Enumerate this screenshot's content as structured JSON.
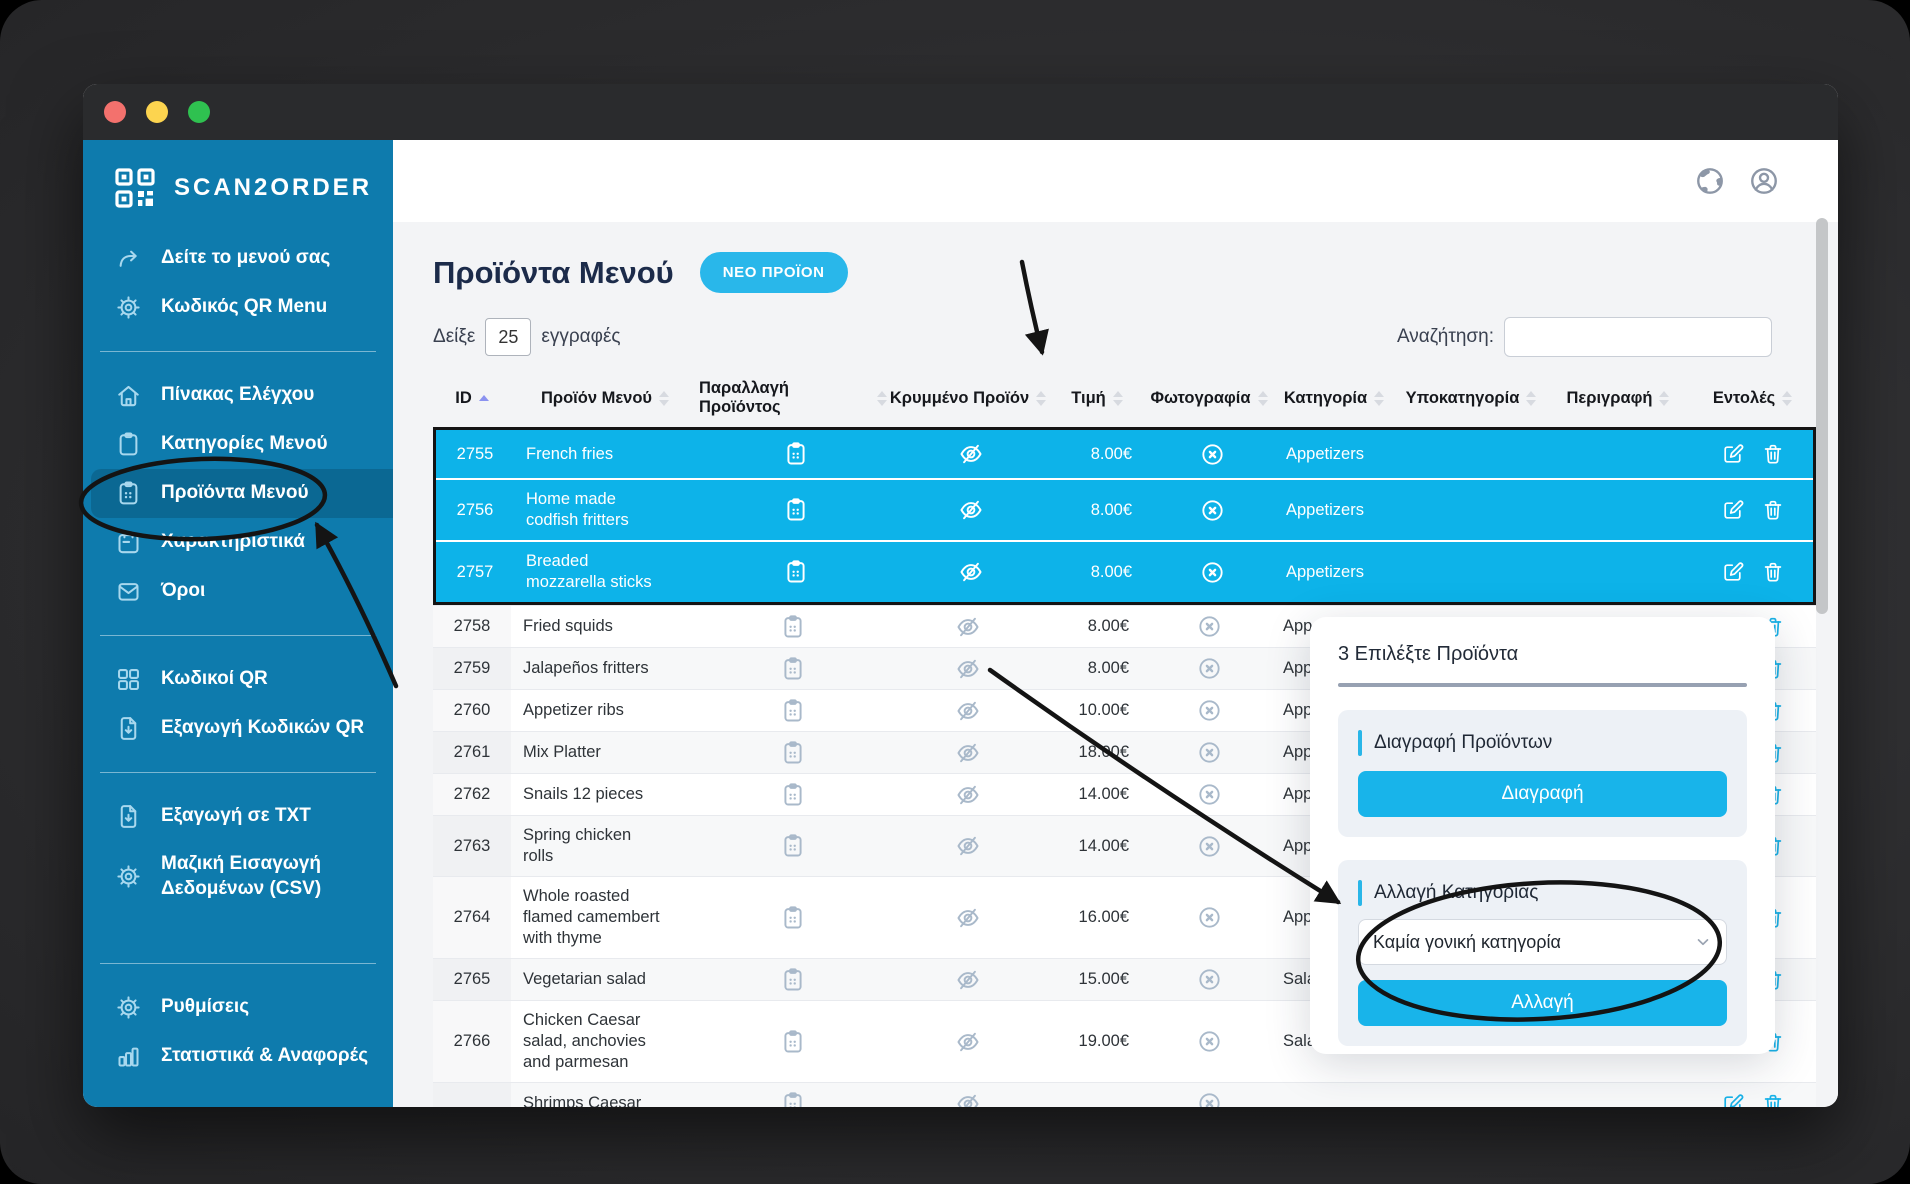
{
  "colors": {
    "sidebar_blue": "#0e7bad",
    "accent_cyan": "#1ab3e9",
    "selected_row_cyan": "#0db3e9",
    "title_navy": "#1c2b4a",
    "annotation_black": "#141414"
  },
  "sidebar": {
    "logo_text": "SCAN2ORDER",
    "groups": [
      {
        "items": [
          {
            "icon": "share-icon",
            "label": "Δείτε το μενού σας"
          },
          {
            "icon": "gear-icon",
            "label": "Κωδικός QR Menu"
          }
        ]
      },
      {
        "items": [
          {
            "icon": "home-icon",
            "label": "Πίνακας Ελέγχου"
          },
          {
            "icon": "clipboard-icon",
            "label": "Κατηγορίες Μενού"
          },
          {
            "icon": "clipboard-list-icon",
            "label": "Προϊόντα Μενού",
            "active": true
          },
          {
            "icon": "calendar-icon",
            "label": "Χαρακτηριστικά"
          },
          {
            "icon": "envelope-icon",
            "label": "Όροι"
          }
        ]
      },
      {
        "items": [
          {
            "icon": "grid-icon",
            "label": "Κωδικοί QR"
          },
          {
            "icon": "file-download-icon",
            "label": "Εξαγωγή Κωδικών QR"
          }
        ]
      },
      {
        "items": [
          {
            "icon": "file-download-icon",
            "label": "Εξαγωγή σε TXT"
          },
          {
            "icon": "gear-icon",
            "label": "Μαζική Εισαγωγή Δεδομένων (CSV)"
          }
        ]
      },
      {
        "items": [
          {
            "icon": "gear-icon",
            "label": "Ρυθμίσεις"
          },
          {
            "icon": "bar-chart-icon",
            "label": "Στατιστικά & Αναφορές"
          }
        ]
      }
    ]
  },
  "header": {
    "title": "Προϊόντα Μενού",
    "new_product_button": "ΝΕΟ ΠΡΟΪΟΝ",
    "show_label": "Δείξε",
    "entries_value": "25",
    "entries_label": "εγγραφές",
    "search_label": "Αναζήτηση:",
    "search_value": ""
  },
  "table": {
    "columns": [
      "ID",
      "Προϊόν Μενού",
      "Παραλλαγή Προϊόντος",
      "Κρυμμένο Προϊόν",
      "Τιμή",
      "Φωτογραφία",
      "Κατηγορία",
      "Υποκατηγορία",
      "Περιγραφή",
      "Εντολές"
    ],
    "sort_column": "ID",
    "sort_direction": "asc",
    "rows": [
      {
        "id": "2755",
        "name": "French fries",
        "price": "8.00€",
        "category": "Appetizers",
        "subcategory": "",
        "description": "",
        "selected": true
      },
      {
        "id": "2756",
        "name": "Home made\ncodfish fritters",
        "price": "8.00€",
        "category": "Appetizers",
        "subcategory": "",
        "description": "",
        "selected": true
      },
      {
        "id": "2757",
        "name": "Breaded\nmozzarella sticks",
        "price": "8.00€",
        "category": "Appetizers",
        "subcategory": "",
        "description": "",
        "selected": true
      },
      {
        "id": "2758",
        "name": "Fried squids",
        "price": "8.00€",
        "category": "Appetizers",
        "subcategory": "",
        "description": ""
      },
      {
        "id": "2759",
        "name": "Jalapeños fritters",
        "price": "8.00€",
        "category": "Appetizers",
        "subcategory": "",
        "description": ""
      },
      {
        "id": "2760",
        "name": "Appetizer ribs",
        "price": "10.00€",
        "category": "Appetizers",
        "subcategory": "",
        "description": ""
      },
      {
        "id": "2761",
        "name": "Mix Platter",
        "price": "18.00€",
        "category": "Appetizers",
        "subcategory": "",
        "description": ""
      },
      {
        "id": "2762",
        "name": "Snails 12 pieces",
        "price": "14.00€",
        "category": "Appetizers",
        "subcategory": "",
        "description": ""
      },
      {
        "id": "2763",
        "name": "Spring chicken\nrolls",
        "price": "14.00€",
        "category": "Appetizers",
        "subcategory": "",
        "description": ""
      },
      {
        "id": "2764",
        "name": "Whole roasted\nflamed camembert\nwith thyme",
        "price": "16.00€",
        "category": "Appetizers",
        "subcategory": "",
        "description": ""
      },
      {
        "id": "2765",
        "name": "Vegetarian salad",
        "price": "15.00€",
        "category": "Salads",
        "subcategory": "",
        "description": ""
      },
      {
        "id": "2766",
        "name": "Chicken Caesar\nsalad, anchovies\nand parmesan",
        "price": "19.00€",
        "category": "Salads",
        "subcategory": "",
        "description": ""
      },
      {
        "id": "",
        "name": "Shrimps Caesar",
        "price": "",
        "category": "",
        "subcategory": "",
        "description": "",
        "partial": true
      }
    ]
  },
  "bulk_panel": {
    "title": "3 Επιλέξτε Προϊόντα",
    "delete_section_title": "Διαγραφή Προϊόντων",
    "delete_button": "Διαγραφή",
    "category_section_title": "Αλλαγή Κατηγορίας",
    "category_select_value": "Καμία γονική κατηγορία",
    "change_button": "Αλλαγή"
  }
}
